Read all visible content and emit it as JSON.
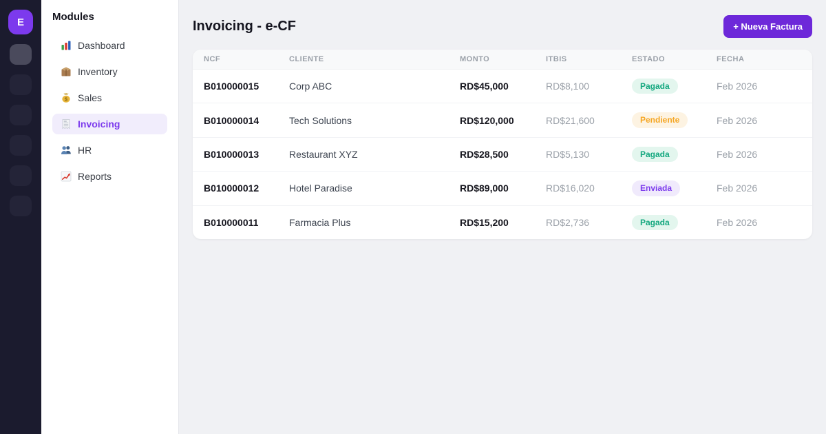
{
  "rail": {
    "logo_letter": "E",
    "placeholder_count": 6
  },
  "sidebar": {
    "title": "Modules",
    "items": [
      {
        "label": "Dashboard",
        "icon": "dashboard-icon",
        "active": false
      },
      {
        "label": "Inventory",
        "icon": "inventory-icon",
        "active": false
      },
      {
        "label": "Sales",
        "icon": "sales-icon",
        "active": false
      },
      {
        "label": "Invoicing",
        "icon": "invoicing-icon",
        "active": true
      },
      {
        "label": "HR",
        "icon": "hr-icon",
        "active": false
      },
      {
        "label": "Reports",
        "icon": "reports-icon",
        "active": false
      }
    ]
  },
  "header": {
    "title": "Invoicing - e-CF",
    "new_invoice_button": "+ Nueva Factura"
  },
  "table": {
    "columns": [
      "NCF",
      "CLIENTE",
      "MONTO",
      "ITBIS",
      "ESTADO",
      "FECHA"
    ],
    "rows": [
      {
        "ncf": "B010000015",
        "cliente": "Corp ABC",
        "monto": "RD$45,000",
        "itbis": "RD$8,100",
        "estado": "Pagada",
        "fecha": "Feb 2026"
      },
      {
        "ncf": "B010000014",
        "cliente": "Tech Solutions",
        "monto": "RD$120,000",
        "itbis": "RD$21,600",
        "estado": "Pendiente",
        "fecha": "Feb 2026"
      },
      {
        "ncf": "B010000013",
        "cliente": "Restaurant XYZ",
        "monto": "RD$28,500",
        "itbis": "RD$5,130",
        "estado": "Pagada",
        "fecha": "Feb 2026"
      },
      {
        "ncf": "B010000012",
        "cliente": "Hotel Paradise",
        "monto": "RD$89,000",
        "itbis": "RD$16,020",
        "estado": "Enviada",
        "fecha": "Feb 2026"
      },
      {
        "ncf": "B010000011",
        "cliente": "Farmacia Plus",
        "monto": "RD$15,200",
        "itbis": "RD$2,736",
        "estado": "Pagada",
        "fecha": "Feb 2026"
      }
    ],
    "status_colors": {
      "Pagada": {
        "fg": "#12a77e",
        "bg": "#e3f6ee"
      },
      "Pendiente": {
        "fg": "#f5a623",
        "bg": "#fdf3e2"
      },
      "Enviada": {
        "fg": "#7c3aed",
        "bg": "#f0eafc"
      }
    }
  },
  "colors": {
    "accent": "#7c3aed",
    "button": "#6d28d9",
    "rail_bg": "#1b1b2e",
    "main_bg": "#f0f1f4"
  }
}
